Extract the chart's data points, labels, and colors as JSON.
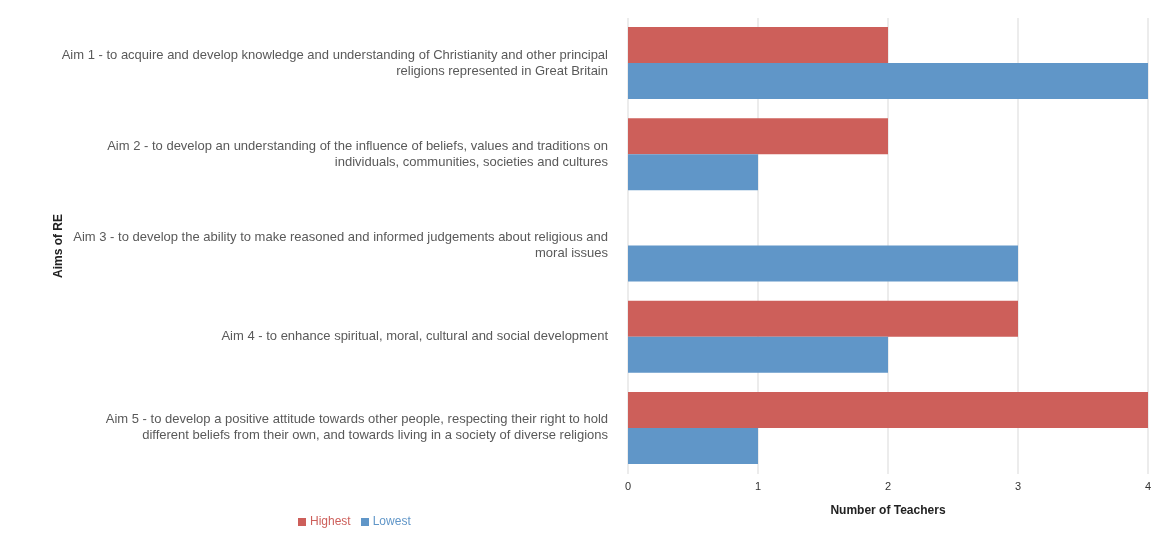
{
  "chart_data": {
    "type": "bar",
    "orientation": "horizontal",
    "ylabel": "Aims of RE",
    "xlabel": "Number of Teachers",
    "categories": [
      "Aim 1 - to acquire and develop knowledge and understanding of Christianity and other principal religions represented in Great Britain",
      "Aim 2 - to develop an understanding of the influence of beliefs, values and traditions on individuals, communities, societies and cultures",
      "Aim 3 - to develop the ability to make reasoned and informed judgements about religious and moral issues",
      "Aim 4 - to enhance spiritual, moral, cultural and social development",
      "Aim 5 - to develop a positive attitude towards other people, respecting their right to hold different beliefs from their own, and towards living in a society of diverse religions"
    ],
    "series": [
      {
        "name": "Highest",
        "color": "#cd5f5a",
        "values": [
          2,
          2,
          0,
          3,
          4
        ]
      },
      {
        "name": "Lowest",
        "color": "#6096c8",
        "values": [
          4,
          1,
          3,
          2,
          1
        ]
      }
    ],
    "xlim": [
      0,
      4
    ],
    "xticks": [
      0,
      1,
      2,
      3,
      4
    ],
    "grid": "x",
    "legend": "bottom left"
  }
}
